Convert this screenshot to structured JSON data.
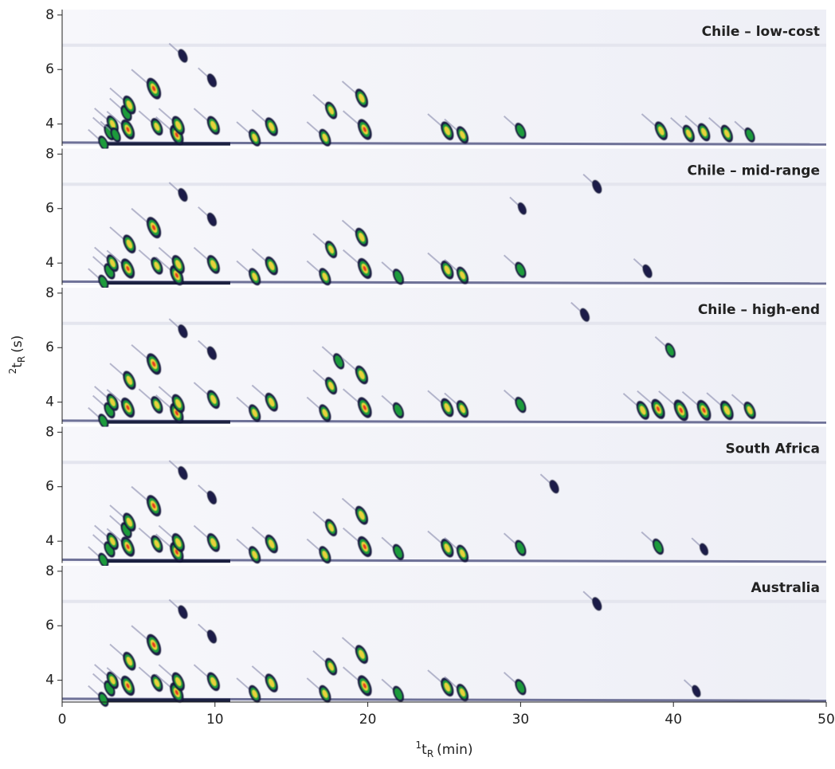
{
  "chart_data": [
    {
      "type": "chromatogram",
      "label": "Chile – low-cost",
      "xlim": [
        0,
        50
      ],
      "ylim": [
        3.2,
        8.2
      ],
      "yticks": [
        4,
        6,
        8
      ],
      "peaks": {
        "x": [
          2.7,
          3.1,
          3.3,
          3.5,
          4.2,
          4.3,
          4.4,
          6.0,
          6.2,
          7.5,
          7.6,
          7.9,
          9.8,
          9.9,
          12.6,
          13.7,
          17.2,
          17.6,
          19.6,
          19.8,
          25.2,
          26.2,
          30.0,
          39.2,
          41.0,
          42.0,
          43.5,
          45.0
        ],
        "y": [
          3.3,
          3.7,
          4.0,
          3.6,
          4.4,
          3.8,
          4.7,
          5.3,
          3.9,
          3.6,
          3.95,
          6.5,
          5.6,
          3.95,
          3.5,
          3.9,
          3.5,
          4.5,
          4.95,
          3.8,
          3.75,
          3.6,
          3.75,
          3.75,
          3.65,
          3.7,
          3.65,
          3.6
        ],
        "z": [
          0.5,
          0.6,
          0.7,
          0.5,
          0.6,
          0.9,
          0.8,
          1.0,
          0.7,
          0.9,
          0.8,
          0.4,
          0.4,
          0.8,
          0.7,
          0.8,
          0.7,
          0.7,
          0.8,
          0.95,
          0.8,
          0.7,
          0.6,
          0.8,
          0.7,
          0.75,
          0.7,
          0.5
        ]
      }
    },
    {
      "type": "chromatogram",
      "label": "Chile – mid-range",
      "xlim": [
        0,
        50
      ],
      "ylim": [
        3.2,
        8.2
      ],
      "yticks": [
        4,
        6,
        8
      ],
      "peaks": {
        "x": [
          2.7,
          3.1,
          3.3,
          4.3,
          4.4,
          6.0,
          6.2,
          7.5,
          7.6,
          7.9,
          9.8,
          9.9,
          12.6,
          13.7,
          17.2,
          17.6,
          19.6,
          19.8,
          22.0,
          25.2,
          26.2,
          30.0,
          30.1,
          35.0,
          38.3
        ],
        "y": [
          3.3,
          3.7,
          4.0,
          3.8,
          4.7,
          5.3,
          3.9,
          3.55,
          3.95,
          6.5,
          5.6,
          3.95,
          3.5,
          3.9,
          3.5,
          4.5,
          4.95,
          3.8,
          3.5,
          3.75,
          3.55,
          3.75,
          6.0,
          6.8,
          3.7
        ],
        "z": [
          0.5,
          0.6,
          0.7,
          0.9,
          0.8,
          1.0,
          0.7,
          0.9,
          0.8,
          0.4,
          0.4,
          0.8,
          0.7,
          0.8,
          0.7,
          0.7,
          0.8,
          0.95,
          0.6,
          0.8,
          0.7,
          0.6,
          0.3,
          0.4,
          0.4
        ]
      }
    },
    {
      "type": "chromatogram",
      "label": "Chile – high-end",
      "xlim": [
        0,
        50
      ],
      "ylim": [
        3.2,
        8.2
      ],
      "yticks": [
        4,
        6,
        8
      ],
      "peaks": {
        "x": [
          2.7,
          3.1,
          3.3,
          4.3,
          4.4,
          6.0,
          6.2,
          7.5,
          7.6,
          7.9,
          9.8,
          9.9,
          12.6,
          13.7,
          17.2,
          17.6,
          18.1,
          19.6,
          19.8,
          22.0,
          25.2,
          26.2,
          30.0,
          34.2,
          39.8,
          38.0,
          39.0,
          40.5,
          42.0,
          43.5,
          45.0
        ],
        "y": [
          3.3,
          3.7,
          4.0,
          3.8,
          4.8,
          5.4,
          3.9,
          3.6,
          3.95,
          6.6,
          5.8,
          4.1,
          3.6,
          4.0,
          3.6,
          4.6,
          5.5,
          5.0,
          3.8,
          3.7,
          3.8,
          3.75,
          3.9,
          7.2,
          5.9,
          3.7,
          3.75,
          3.7,
          3.7,
          3.7,
          3.7
        ],
        "z": [
          0.5,
          0.6,
          0.7,
          0.9,
          0.8,
          1.0,
          0.7,
          0.9,
          0.8,
          0.4,
          0.4,
          0.8,
          0.7,
          0.8,
          0.7,
          0.7,
          0.6,
          0.8,
          0.95,
          0.6,
          0.8,
          0.7,
          0.6,
          0.4,
          0.5,
          0.8,
          0.9,
          1.0,
          0.95,
          0.85,
          0.7
        ]
      }
    },
    {
      "type": "chromatogram",
      "label": "South Africa",
      "xlim": [
        0,
        50
      ],
      "ylim": [
        3.2,
        8.2
      ],
      "yticks": [
        4,
        6,
        8
      ],
      "peaks": {
        "x": [
          2.7,
          3.1,
          3.3,
          4.2,
          4.3,
          4.4,
          6.0,
          6.2,
          7.5,
          7.6,
          7.9,
          9.8,
          9.9,
          12.6,
          13.7,
          17.2,
          17.6,
          19.6,
          19.8,
          22.0,
          25.2,
          26.2,
          30.0,
          32.2,
          39.0,
          42.0
        ],
        "y": [
          3.3,
          3.7,
          4.0,
          4.4,
          3.8,
          4.7,
          5.3,
          3.9,
          3.6,
          3.95,
          6.5,
          5.6,
          3.95,
          3.5,
          3.9,
          3.5,
          4.5,
          4.95,
          3.8,
          3.6,
          3.75,
          3.55,
          3.75,
          6.0,
          3.8,
          3.7
        ],
        "z": [
          0.5,
          0.6,
          0.7,
          0.6,
          0.9,
          0.8,
          1.0,
          0.7,
          0.9,
          0.8,
          0.4,
          0.4,
          0.8,
          0.7,
          0.8,
          0.7,
          0.7,
          0.8,
          0.95,
          0.6,
          0.8,
          0.7,
          0.6,
          0.4,
          0.6,
          0.3
        ]
      }
    },
    {
      "type": "chromatogram",
      "label": "Australia",
      "xlim": [
        0,
        50
      ],
      "ylim": [
        3.2,
        8.2
      ],
      "yticks": [
        4,
        6,
        8
      ],
      "xticks": [
        0,
        10,
        20,
        30,
        40,
        50
      ],
      "xlabel": {
        "sup": "1",
        "base": "t",
        "sub": "R",
        "unit": "(min)"
      },
      "peaks": {
        "x": [
          2.7,
          3.1,
          3.3,
          4.3,
          4.4,
          6.0,
          6.2,
          7.5,
          7.6,
          7.9,
          9.8,
          9.9,
          12.6,
          13.7,
          17.2,
          17.6,
          19.6,
          19.8,
          22.0,
          25.2,
          26.2,
          30.0,
          35.0,
          41.5
        ],
        "y": [
          3.3,
          3.7,
          4.0,
          3.8,
          4.7,
          5.3,
          3.9,
          3.55,
          3.95,
          6.5,
          5.6,
          3.95,
          3.5,
          3.9,
          3.5,
          4.5,
          4.95,
          3.8,
          3.5,
          3.75,
          3.55,
          3.75,
          6.8,
          3.6
        ],
        "z": [
          0.5,
          0.6,
          0.7,
          0.9,
          0.8,
          1.0,
          0.7,
          0.9,
          0.8,
          0.4,
          0.4,
          0.8,
          0.7,
          0.8,
          0.7,
          0.7,
          0.8,
          0.95,
          0.6,
          0.8,
          0.7,
          0.6,
          0.4,
          0.3
        ]
      }
    }
  ],
  "ylabel": {
    "sup": "2",
    "base": "t",
    "sub": "R",
    "unit": "(s)"
  }
}
